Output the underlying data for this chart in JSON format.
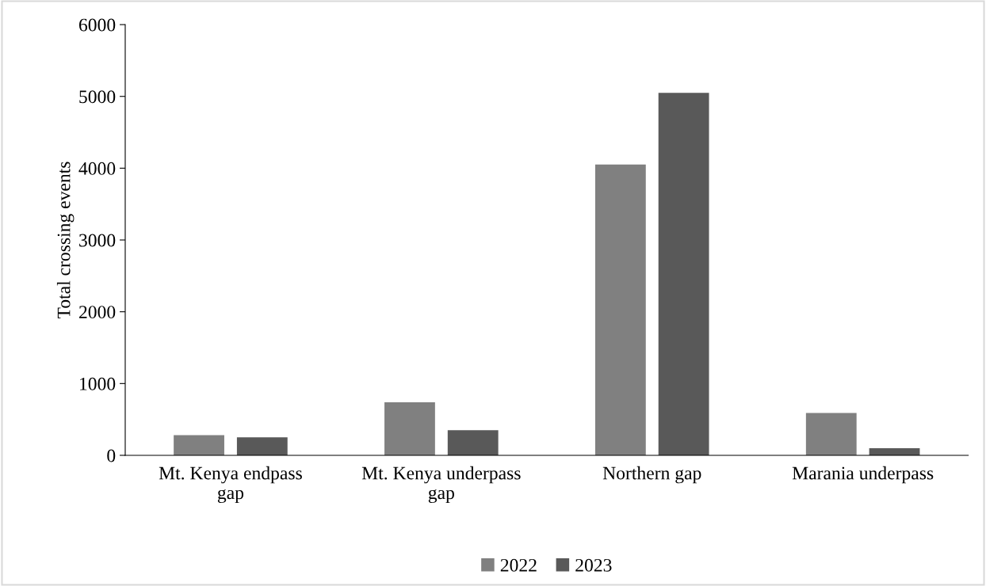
{
  "chart_data": {
    "type": "bar",
    "ylabel": "Total crossing events",
    "categories": [
      "Mt. Kenya endpass gap",
      "Mt. Kenya underpass gap",
      "Northern gap",
      "Marania underpass"
    ],
    "series": [
      {
        "name": "2022",
        "color": "#808080",
        "values": [
          280,
          740,
          4050,
          590
        ]
      },
      {
        "name": "2023",
        "color": "#595959",
        "values": [
          250,
          350,
          5050,
          100
        ]
      }
    ],
    "ylim": [
      0,
      6000
    ],
    "yticks": [
      0,
      1000,
      2000,
      3000,
      4000,
      5000,
      6000
    ],
    "grid": false,
    "legend": "bottom"
  }
}
